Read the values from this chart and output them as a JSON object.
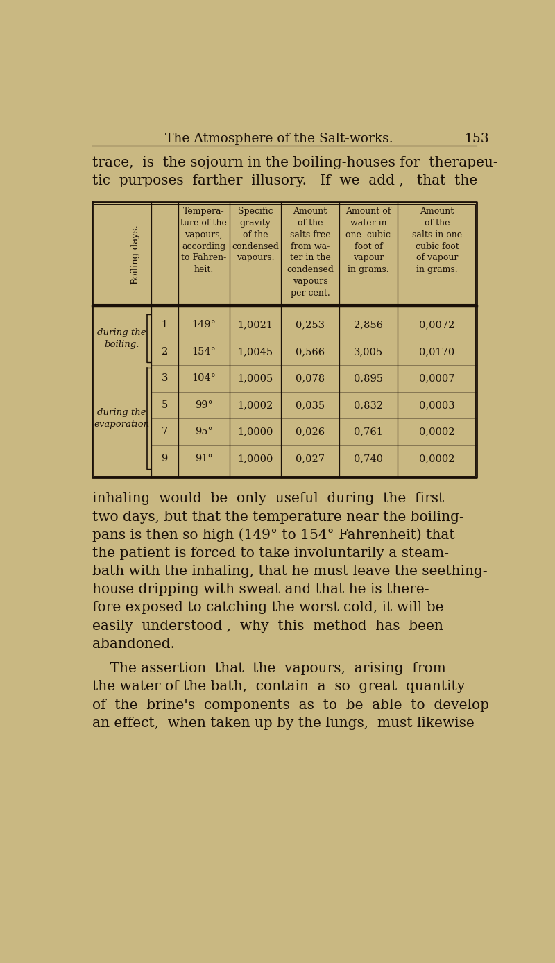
{
  "bg_color": "#c9b882",
  "text_color": "#1a1008",
  "title": "The Atmosphere of the Salt-works.",
  "page_num": "153",
  "title_fontsize": 13.5,
  "para_fontsize": 14.5,
  "table_header_fontsize": 9.0,
  "table_data_fontsize": 10.5,
  "col_headers": [
    "Boiling-days.",
    "Tempera-\nture of the\nvapours,\naccording\nto Fahren-\nheit.",
    "Specific\ngravity\nof the\ncondensed\nvapours.",
    "Amount\nof the\nsalts free\nfrom wa-\nter in the\ncondensed\nvapours\nper cent.",
    "Amount of\nwater in\none  cubic\nfoot of\nvapour\nin grams.",
    "Amount\nof the\nsalts in one\ncubic foot\nof vapour\nin grams."
  ],
  "row_groups": [
    {
      "label1": "during the",
      "label2": "boiling.",
      "bracket": "bottom",
      "rows": [
        [
          "1",
          "149°",
          "1,0021",
          "0,253",
          "2,856",
          "0,0072"
        ],
        [
          "2",
          "154°",
          "1,0045",
          "0,566",
          "3,005",
          "0,0170"
        ]
      ]
    },
    {
      "label1": "during the",
      "label2": "evaporation",
      "bracket": "left",
      "rows": [
        [
          "3",
          "104°",
          "1,0005",
          "0,078",
          "0,895",
          "0,0007"
        ],
        [
          "5",
          "99°",
          "1,0002",
          "0,035",
          "0,832",
          "0,0003"
        ],
        [
          "7",
          "95°",
          "1,0000",
          "0,026",
          "0,761",
          "0,0002"
        ],
        [
          "9",
          "91°",
          "1,0000",
          "0,027",
          "0,740",
          "0,0002"
        ]
      ]
    }
  ],
  "para2_lines": [
    "inhaling  would  be  only  useful  during  the  first",
    "two days, but that the temperature near the boiling-",
    "pans is then so high (149° to 154° Fahrenheit) that",
    "the patient is forced to take involuntarily a steam-",
    "bath with the inhaling, that he must leave the seething-",
    "house dripping with sweat and that he is there-",
    "fore exposed to catching the worst cold, it will be",
    "easily  understood ,  why  this  method  has  been",
    "abandoned."
  ],
  "para3_lines": [
    "    The assertion  that  the  vapours,  arising  from",
    "the water of the bath,  contain  a  so  great  quantity",
    "of  the  brine's  components  as  to  be  able  to  develop",
    "an effect,  when taken up by the lungs,  must likewise"
  ]
}
